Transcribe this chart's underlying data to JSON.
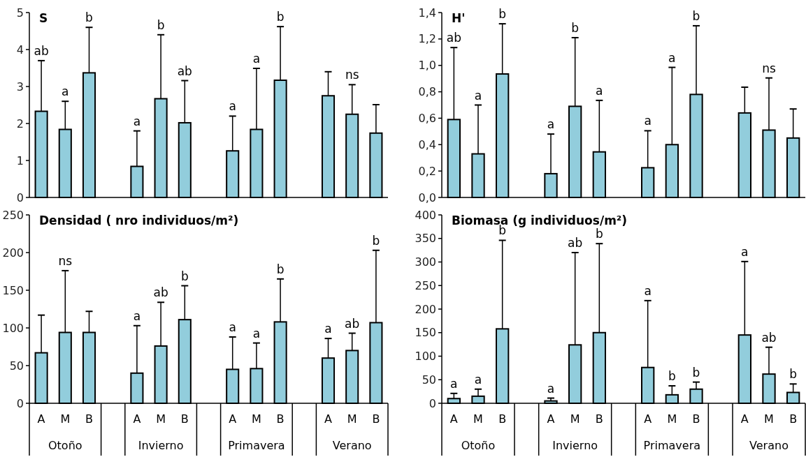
{
  "chart_data": [
    {
      "type": "bar",
      "title": "S",
      "categories": [
        null,
        null,
        null,
        null,
        null,
        null,
        null,
        null,
        null,
        null,
        null,
        null,
        null,
        null,
        null
      ],
      "ylim": [
        0,
        5
      ],
      "yticks": [
        0,
        1,
        2,
        3,
        4,
        5
      ],
      "annotations": [
        {
          "text": "ab",
          "y": 3.7
        },
        {
          "text": "a",
          "y": 2.6
        },
        {
          "text": "b",
          "y": 4.6
        },
        {
          "text": "a",
          "y": 1.8
        },
        {
          "text": "b",
          "y": 4.4
        },
        {
          "text": "ab",
          "y": 3.16
        },
        {
          "text": "a",
          "y": 2.2
        },
        {
          "text": "a",
          "y": 3.49
        },
        {
          "text": "b",
          "y": 4.62
        },
        {
          "text": "ns",
          "y": 3.05
        }
      ],
      "series": [
        {
          "color": "#92cddc",
          "values": [
            2.33,
            1.84,
            3.37,
            null,
            0.84,
            2.67,
            2.02,
            null,
            1.26,
            1.84,
            3.17,
            null,
            2.75,
            2.25,
            1.74
          ],
          "errors": [
            [
              2.33,
              3.7
            ],
            [
              1.84,
              2.6
            ],
            [
              3.37,
              4.6
            ],
            null,
            [
              0.84,
              1.8
            ],
            [
              2.67,
              4.4
            ],
            [
              2.02,
              3.16
            ],
            null,
            [
              1.26,
              2.2
            ],
            [
              1.84,
              3.49
            ],
            [
              3.17,
              4.62
            ],
            null,
            [
              2.75,
              3.4
            ],
            [
              2.25,
              3.05
            ],
            [
              1.74,
              2.51
            ]
          ]
        }
      ]
    },
    {
      "type": "bar",
      "title": "H'",
      "categories": [
        null,
        null,
        null,
        null,
        null,
        null,
        null,
        null,
        null,
        null,
        null,
        null,
        null,
        null,
        null
      ],
      "ylim": [
        0,
        1.4
      ],
      "yticks": [
        {
          "value": 0,
          "label": "0,0"
        },
        {
          "value": 0.2,
          "label": "0,2"
        },
        {
          "value": 0.4,
          "label": "0,4"
        },
        {
          "value": 0.6,
          "label": "0,6"
        },
        {
          "value": 0.8,
          "label": "0,8"
        },
        {
          "value": 1,
          "label": "1,0"
        },
        {
          "value": 1.2,
          "label": "1,2"
        },
        {
          "value": 1.4,
          "label": "1,4"
        }
      ],
      "annotations": [
        {
          "text": "ab",
          "y": 1.135
        },
        {
          "text": "a",
          "y": 0.7
        },
        {
          "text": "b",
          "y": 1.315
        },
        {
          "text": "a",
          "y": 0.48
        },
        {
          "text": "b",
          "y": 1.21
        },
        {
          "text": "a",
          "y": 0.735
        },
        {
          "text": "a",
          "y": 0.505
        },
        {
          "text": "a",
          "y": 0.985
        },
        {
          "text": "b",
          "y": 1.3
        },
        {
          "text": "ns",
          "y": 0.905
        }
      ],
      "series": [
        {
          "color": "#92cddc",
          "values": [
            0.59,
            0.33,
            0.935,
            null,
            0.18,
            0.69,
            0.345,
            null,
            0.225,
            0.4,
            0.78,
            null,
            0.64,
            0.51,
            0.45
          ],
          "errors": [
            [
              0.59,
              1.135
            ],
            [
              0.33,
              0.7
            ],
            [
              0.935,
              1.315
            ],
            null,
            [
              0.18,
              0.48
            ],
            [
              0.69,
              1.21
            ],
            [
              0.345,
              0.735
            ],
            null,
            [
              0.225,
              0.505
            ],
            [
              0.4,
              0.985
            ],
            [
              0.78,
              1.3
            ],
            null,
            [
              0.64,
              0.835
            ],
            [
              0.51,
              0.905
            ],
            [
              0.45,
              0.67
            ]
          ]
        }
      ]
    },
    {
      "type": "bar",
      "title": "Densidad ( nro individuos/m²)",
      "categories": [
        "A",
        "M",
        "B",
        null,
        "A",
        "M",
        "B",
        null,
        "A",
        "M",
        "B",
        null,
        "A",
        "M",
        "B"
      ],
      "ylim": [
        0,
        250
      ],
      "yticks": [
        0,
        50,
        100,
        150,
        200,
        250
      ],
      "annotations": [
        "Otoño",
        "Invierno",
        "Primavera",
        "Verano",
        {
          "text": "ns",
          "y": 176
        },
        {
          "text": "a",
          "y": 103
        },
        {
          "text": "ab",
          "y": 134
        },
        {
          "text": "b",
          "y": 156
        },
        {
          "text": "a",
          "y": 88
        },
        {
          "text": "a",
          "y": 80
        },
        {
          "text": "b",
          "y": 165
        },
        {
          "text": "a",
          "y": 86
        },
        {
          "text": "ab",
          "y": 93
        },
        {
          "text": "b",
          "y": 203
        }
      ],
      "series": [
        {
          "color": "#92cddc",
          "values": [
            67,
            94,
            94,
            null,
            40,
            76,
            111,
            null,
            45,
            46,
            108,
            null,
            60,
            70,
            107
          ],
          "errors": [
            [
              67,
              117
            ],
            [
              94,
              176
            ],
            [
              94,
              122
            ],
            null,
            [
              40,
              103
            ],
            [
              76,
              134
            ],
            [
              111,
              156
            ],
            null,
            [
              45,
              88
            ],
            [
              46,
              80
            ],
            [
              108,
              165
            ],
            null,
            [
              60,
              86
            ],
            [
              70,
              93
            ],
            [
              107,
              203
            ]
          ]
        }
      ]
    },
    {
      "type": "bar",
      "title": "Biomasa (g individuos/m²)",
      "categories": [
        "A",
        "M",
        "B",
        null,
        "A",
        "M",
        "B",
        null,
        "A",
        "M",
        "B",
        null,
        "A",
        "M",
        "B"
      ],
      "ylim": [
        0,
        400
      ],
      "yticks": [
        0,
        50,
        100,
        150,
        200,
        250,
        300,
        350,
        400
      ],
      "annotations": [
        "Otoño",
        "Invierno",
        "Primavera",
        "Verano",
        {
          "text": "a",
          "y": 21
        },
        {
          "text": "a",
          "y": 30
        },
        {
          "text": "b",
          "y": 346
        },
        {
          "text": "a",
          "y": 11
        },
        {
          "text": "ab",
          "y": 320
        },
        {
          "text": "b",
          "y": 339
        },
        {
          "text": "a",
          "y": 218
        },
        {
          "text": "b",
          "y": 37
        },
        {
          "text": "b",
          "y": 45
        },
        {
          "text": "a",
          "y": 301
        },
        {
          "text": "ab",
          "y": 119
        },
        {
          "text": "b",
          "y": 41
        }
      ],
      "series": [
        {
          "color": "#92cddc",
          "values": [
            10,
            15,
            158,
            null,
            5,
            124,
            150,
            null,
            76,
            18,
            30,
            null,
            145,
            62,
            23
          ],
          "errors": [
            [
              10,
              21
            ],
            [
              15,
              30
            ],
            [
              158,
              346
            ],
            null,
            [
              5,
              11
            ],
            [
              124,
              320
            ],
            [
              150,
              339
            ],
            null,
            [
              76,
              218
            ],
            [
              18,
              37
            ],
            [
              30,
              45
            ],
            null,
            [
              145,
              301
            ],
            [
              62,
              119
            ],
            [
              23,
              41
            ]
          ]
        }
      ]
    }
  ]
}
